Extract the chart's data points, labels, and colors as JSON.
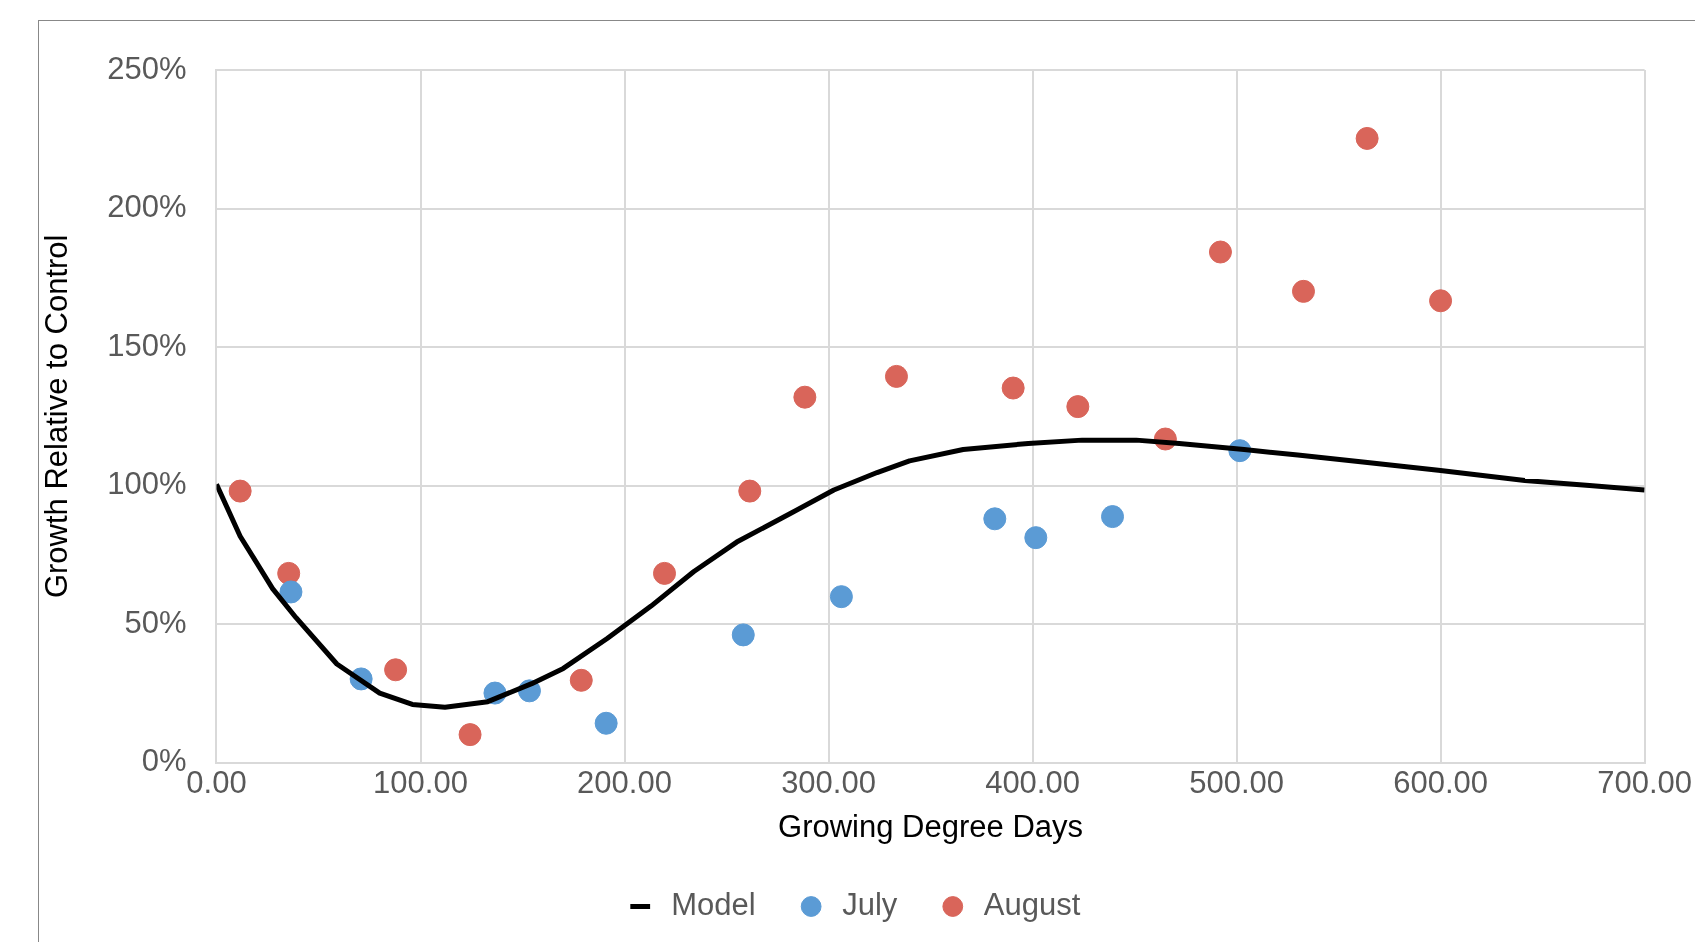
{
  "chart_data": {
    "type": "scatter",
    "xlabel": "Growing Degree Days",
    "ylabel": "Growth Relative to Control",
    "xlim": [
      0,
      700
    ],
    "xticks": [
      {
        "value": 0,
        "label": "0.00"
      },
      {
        "value": 100,
        "label": "100.00"
      },
      {
        "value": 200,
        "label": "200.00"
      },
      {
        "value": 300,
        "label": "300.00"
      },
      {
        "value": 400,
        "label": "400.00"
      },
      {
        "value": 500,
        "label": "500.00"
      },
      {
        "value": 600,
        "label": "600.00"
      },
      {
        "value": 700,
        "label": "700.00"
      }
    ],
    "ylim": [
      0,
      250
    ],
    "yticks": [
      {
        "value": 0,
        "label": "0%"
      },
      {
        "value": 50,
        "label": "50%"
      },
      {
        "value": 100,
        "label": "100%"
      },
      {
        "value": 150,
        "label": "150%"
      },
      {
        "value": 200,
        "label": "200%"
      },
      {
        "value": 250,
        "label": "250%"
      }
    ],
    "grid": true,
    "legend": "bottom",
    "marker": "circle",
    "series": [
      {
        "name": "July",
        "color": "#5b9bd5",
        "x": [
          36.5,
          70.9,
          136.5,
          153.4,
          191,
          258.2,
          306.3,
          381.5,
          401.6,
          439.2,
          501.6
        ],
        "values": [
          61.6,
          30.2,
          25.1,
          25.9,
          14.2,
          46.1,
          59.9,
          88,
          81.2,
          88.8,
          112.6
        ]
      },
      {
        "name": "August",
        "color": "#d9655a",
        "x": [
          11.6,
          35.4,
          87.8,
          124.3,
          178.8,
          219.6,
          261.4,
          288.4,
          333.3,
          390.5,
          422.2,
          465.1,
          492.1,
          532.8,
          564,
          600
        ],
        "values": [
          98,
          68.3,
          33.5,
          10.1,
          29.7,
          68.3,
          98,
          131.9,
          139.4,
          135.2,
          128.5,
          116.8,
          184.3,
          170.1,
          225.3,
          166.7
        ]
      },
      {
        "name": "Model",
        "type": "line",
        "color": "#000000",
        "marker": "none",
        "x": [
          0,
          11.6,
          27.5,
          39,
          59,
          80,
          96,
          112,
          133,
          154.5,
          170,
          191.5,
          213,
          234,
          255,
          281.5,
          302.6,
          323.8,
          339.7,
          366,
          397.9,
          424.3,
          450.8,
          471.9,
          503.7,
          530,
          561.9,
          598.9,
          641.3,
          673,
          700
        ],
        "values": [
          100.5,
          81.7,
          62.8,
          52.3,
          35.6,
          25.1,
          21,
          20,
          22,
          28.5,
          34,
          44.8,
          56.5,
          69,
          79.6,
          90,
          98.4,
          104.7,
          108.9,
          113,
          115.2,
          116.4,
          116.4,
          115.2,
          113,
          111,
          108.5,
          105.5,
          101.8,
          100,
          98.4
        ]
      }
    ]
  }
}
